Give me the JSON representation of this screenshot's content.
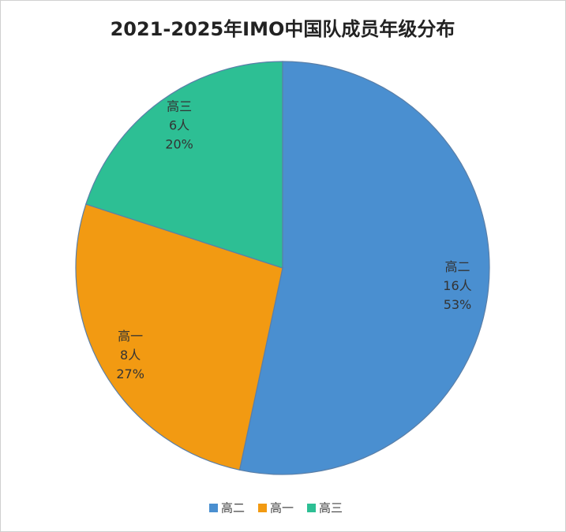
{
  "chart_data": {
    "type": "pie",
    "title": "2021-2025年IMO中国队成员年级分布",
    "categories": [
      "高二",
      "高一",
      "高三"
    ],
    "values": [
      16,
      8,
      6
    ],
    "value_labels": [
      "16人",
      "8人",
      "6人"
    ],
    "percentages": [
      53,
      27,
      20
    ],
    "percentage_labels": [
      "53%",
      "27%",
      "20%"
    ],
    "colors": [
      "#4a8fd0",
      "#f29a12",
      "#2dbf94"
    ]
  }
}
